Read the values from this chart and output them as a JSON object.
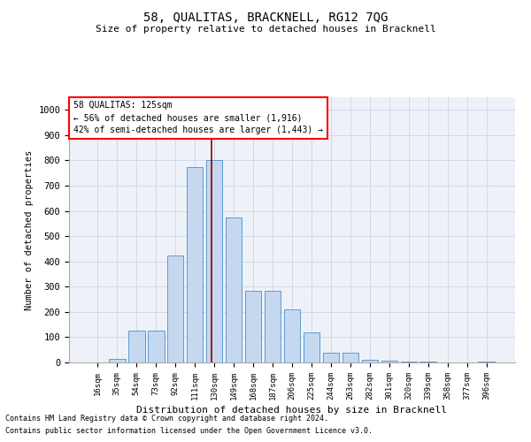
{
  "title": "58, QUALITAS, BRACKNELL, RG12 7QG",
  "subtitle": "Size of property relative to detached houses in Bracknell",
  "xlabel": "Distribution of detached houses by size in Bracknell",
  "ylabel": "Number of detached properties",
  "categories": [
    "16sqm",
    "35sqm",
    "54sqm",
    "73sqm",
    "92sqm",
    "111sqm",
    "130sqm",
    "149sqm",
    "168sqm",
    "187sqm",
    "206sqm",
    "225sqm",
    "244sqm",
    "263sqm",
    "282sqm",
    "301sqm",
    "320sqm",
    "339sqm",
    "358sqm",
    "377sqm",
    "396sqm"
  ],
  "values": [
    0,
    15,
    125,
    125,
    425,
    775,
    800,
    575,
    285,
    285,
    210,
    120,
    40,
    40,
    10,
    8,
    5,
    2,
    0,
    0,
    5
  ],
  "bar_color": "#c5d8f0",
  "bar_edge_color": "#5b9bd5",
  "grid_color": "#d0d8e8",
  "background_color": "#eef2f8",
  "red_line_x": 5.85,
  "annotation_text": "58 QUALITAS: 125sqm\n← 56% of detached houses are smaller (1,916)\n42% of semi-detached houses are larger (1,443) →",
  "footer_line1": "Contains HM Land Registry data © Crown copyright and database right 2024.",
  "footer_line2": "Contains public sector information licensed under the Open Government Licence v3.0.",
  "ylim": [
    0,
    1050
  ],
  "yticks": [
    0,
    100,
    200,
    300,
    400,
    500,
    600,
    700,
    800,
    900,
    1000
  ]
}
